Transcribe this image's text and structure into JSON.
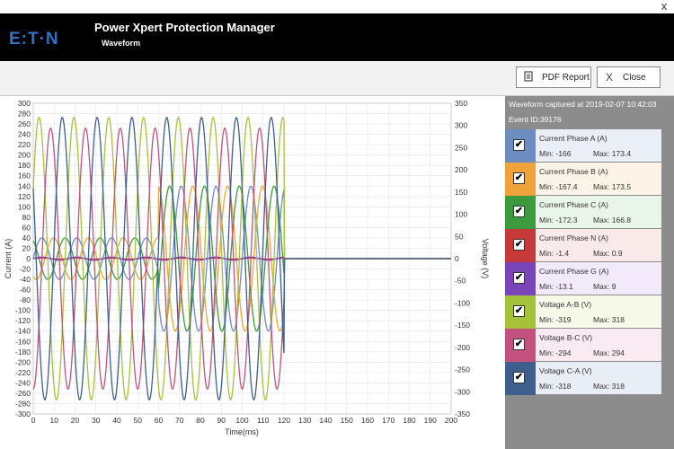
{
  "window": {
    "close_glyph": "x"
  },
  "header": {
    "title": "Power Xpert Protection Manager",
    "subtitle": "Waveform",
    "logo_text": "E:T·N",
    "logo_icon": "eaton-logo"
  },
  "toolbar": {
    "pdf_label": "PDF Report",
    "pdf_icon": "document-icon",
    "close_label": "Close",
    "close_icon": "x-icon",
    "close_glyph": "X"
  },
  "panel": {
    "captured": "Waveform captured at 2019-02-07 10:42:03",
    "event_id": "Event ID:39176"
  },
  "legend": [
    {
      "name": "Current Phase A (A)",
      "min": "Min: -166",
      "max": "Max: 173.4",
      "color": "#6d8cc2",
      "bg": "#eaeef6",
      "check": "✔"
    },
    {
      "name": "Current Phase B (A)",
      "min": "Min: -167.4",
      "max": "Max: 173.5",
      "color": "#f0a33a",
      "bg": "#fdf3e6",
      "check": "✔"
    },
    {
      "name": "Current Phase C (A)",
      "min": "Min: -172.3",
      "max": "Max: 166.8",
      "color": "#3c9b3c",
      "bg": "#eaf5ea",
      "check": "✔"
    },
    {
      "name": "Current Phase N (A)",
      "min": "Min: -1.4",
      "max": "Max: 0.9",
      "color": "#c83a3a",
      "bg": "#fbeaea",
      "check": "✔"
    },
    {
      "name": "Current Phase G (A)",
      "min": "Min: -13.1",
      "max": "Max: 9",
      "color": "#7a45b8",
      "bg": "#f2eafa",
      "check": "✔"
    },
    {
      "name": "Voltage A-B (V)",
      "min": "Min: -319",
      "max": "Max: 318",
      "color": "#a6c23b",
      "bg": "#f6f9e8",
      "check": "✔"
    },
    {
      "name": "Voltage B-C (V)",
      "min": "Min: -294",
      "max": "Max: 294",
      "color": "#c4527e",
      "bg": "#faeaf1",
      "check": "✔"
    },
    {
      "name": "Voltage C-A (V)",
      "min": "Min: -318",
      "max": "Max: 318",
      "color": "#3e5f8e",
      "bg": "#e9eef6",
      "check": "✔"
    }
  ],
  "chart_data": {
    "type": "line",
    "xlabel": "Time(ms)",
    "ylabel_left": "Current (A)",
    "ylabel_right": "Voltage (V)",
    "xlim": [
      0,
      200
    ],
    "ylim_left": [
      -300,
      300
    ],
    "ylim_right": [
      -350,
      350
    ],
    "x_ticks": [
      0,
      10,
      20,
      30,
      40,
      50,
      60,
      70,
      80,
      90,
      100,
      110,
      120,
      130,
      140,
      150,
      160,
      170,
      180,
      190,
      200
    ],
    "y_left_ticks": [
      300,
      280,
      260,
      240,
      220,
      200,
      180,
      160,
      140,
      120,
      100,
      80,
      60,
      40,
      20,
      0,
      -20,
      -40,
      -60,
      -80,
      -100,
      -120,
      -140,
      -160,
      -180,
      -200,
      -220,
      -240,
      -260,
      -280,
      -300
    ],
    "y_right_ticks": [
      350,
      300,
      250,
      200,
      150,
      100,
      50,
      0,
      -50,
      -100,
      -150,
      -200,
      -250,
      -300,
      -350
    ],
    "grid": true,
    "frequency_hz": 60,
    "capture_end_ms": 120,
    "series": [
      {
        "name": "Current Phase A (A)",
        "axis": "left",
        "amplitude": 40,
        "phase_deg": 0,
        "amplitude_after_60ms": 140,
        "color": "#6d8cc2"
      },
      {
        "name": "Current Phase B (A)",
        "axis": "left",
        "amplitude": 40,
        "phase_deg": -120,
        "amplitude_after_60ms": 140,
        "color": "#f0a33a"
      },
      {
        "name": "Current Phase C (A)",
        "axis": "left",
        "amplitude": 40,
        "phase_deg": 120,
        "amplitude_after_60ms": 140,
        "color": "#3c9b3c"
      },
      {
        "name": "Current Phase N (A)",
        "axis": "left",
        "amplitude": 1,
        "phase_deg": 0,
        "color": "#c83a3a"
      },
      {
        "name": "Current Phase G (A)",
        "axis": "left",
        "amplitude": 3,
        "phase_deg": 0,
        "color": "#7a45b8"
      },
      {
        "name": "Voltage A-B (V)",
        "axis": "right",
        "amplitude": 318,
        "phase_deg": 30,
        "color": "#a6c23b"
      },
      {
        "name": "Voltage B-C (V)",
        "axis": "right",
        "amplitude": 294,
        "phase_deg": -90,
        "color": "#c4527e"
      },
      {
        "name": "Voltage C-A (V)",
        "axis": "right",
        "amplitude": 318,
        "phase_deg": 150,
        "color": "#3e5f8e"
      }
    ]
  }
}
